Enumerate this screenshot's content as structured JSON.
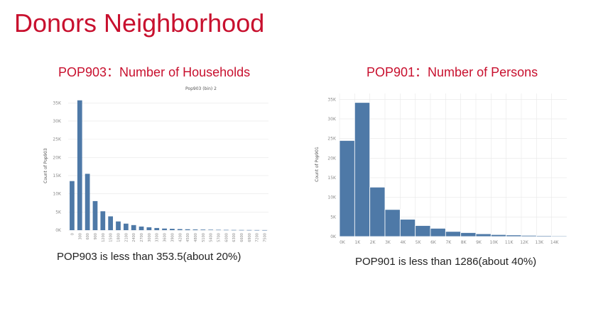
{
  "slide": {
    "title": "Donors Neighborhood"
  },
  "panels": [
    {
      "title": "POP903：Number of Households",
      "caption": "POP903 is less than 353.5(about 20%)"
    },
    {
      "title": "POP901：Number of Persons",
      "caption": "POP901 is less than 1286(about 40%)"
    }
  ],
  "colors": {
    "title": "#c8102e",
    "bar": "#4e79a7",
    "grid": "#e8e8e8",
    "tick": "#8a8a8a"
  },
  "chart_data": [
    {
      "type": "bar",
      "title": "Pop903 (bin) 2",
      "ylabel": "Count of Pop903",
      "xlabel": "",
      "categories": [
        "0",
        "300",
        "600",
        "900",
        "1200",
        "1500",
        "1800",
        "2100",
        "2400",
        "2700",
        "3000",
        "3300",
        "3600",
        "3900",
        "4200",
        "4500",
        "4800",
        "5100",
        "5400",
        "5700",
        "6000",
        "6300",
        "6600",
        "6900",
        "7200",
        "7500"
      ],
      "values": [
        13500,
        35700,
        15500,
        8000,
        5200,
        3800,
        2400,
        1800,
        1400,
        1000,
        800,
        600,
        450,
        380,
        300,
        250,
        200,
        160,
        130,
        100,
        80,
        60,
        50,
        40,
        30,
        20
      ],
      "yticks": [
        0,
        5000,
        10000,
        15000,
        20000,
        25000,
        30000,
        35000
      ],
      "ytick_labels": [
        "0K",
        "5K",
        "10K",
        "15K",
        "20K",
        "25K",
        "30K",
        "35K"
      ],
      "ylim": [
        0,
        37000
      ],
      "grid": true
    },
    {
      "type": "bar",
      "title": "",
      "ylabel": "Count of Pop901",
      "xlabel": "",
      "categories": [
        "0K",
        "1K",
        "2K",
        "3K",
        "4K",
        "5K",
        "6K",
        "7K",
        "8K",
        "9K",
        "10K",
        "11K",
        "12K",
        "13K",
        "14K"
      ],
      "bin_edges": [
        0,
        1000,
        2000,
        3000,
        4000,
        5000,
        6000,
        7000,
        8000,
        9000,
        10000,
        11000,
        12000,
        13000,
        14000,
        15000
      ],
      "values": [
        24500,
        34200,
        12600,
        6900,
        4400,
        2800,
        2100,
        1300,
        1000,
        700,
        500,
        400,
        300,
        250,
        200
      ],
      "xticks": [
        0,
        1000,
        2000,
        3000,
        4000,
        5000,
        6000,
        7000,
        8000,
        9000,
        10000,
        11000,
        12000,
        13000,
        14000
      ],
      "xtick_labels": [
        "0K",
        "1K",
        "2K",
        "3K",
        "4K",
        "5K",
        "6K",
        "7K",
        "8K",
        "9K",
        "10K",
        "11K",
        "12K",
        "13K",
        "14K"
      ],
      "yticks": [
        0,
        5000,
        10000,
        15000,
        20000,
        25000,
        30000,
        35000
      ],
      "ytick_labels": [
        "0K",
        "5K",
        "10K",
        "15K",
        "20K",
        "25K",
        "30K",
        "35K"
      ],
      "ylim": [
        0,
        36500
      ],
      "grid": true
    }
  ]
}
